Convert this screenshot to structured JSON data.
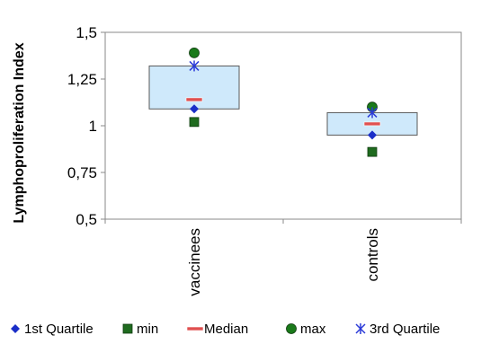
{
  "chart_data": {
    "type": "box",
    "ylabel": "Lymphoproliferation Index",
    "ylim": [
      0.5,
      1.5
    ],
    "yticks": [
      0.5,
      0.75,
      1,
      1.25,
      1.5
    ],
    "ytick_labels": [
      "0,5",
      "0,75",
      "1",
      "1,25",
      "1,5"
    ],
    "categories": [
      "vaccinees",
      "controls"
    ],
    "grid": false,
    "legend_position": "bottom",
    "series": [
      {
        "name": "1st Quartile",
        "values": [
          1.09,
          0.95
        ]
      },
      {
        "name": "min",
        "values": [
          1.02,
          0.86
        ]
      },
      {
        "name": "Median",
        "values": [
          1.14,
          1.01
        ]
      },
      {
        "name": "max",
        "values": [
          1.39,
          1.1
        ]
      },
      {
        "name": "3rd Quartile",
        "values": [
          1.32,
          1.07
        ]
      }
    ],
    "box": {
      "lower": [
        1.09,
        0.95
      ],
      "upper": [
        1.32,
        1.07
      ]
    },
    "colors": {
      "box_fill": "#cfe9fb",
      "box_stroke": "#5a5a5a",
      "q1": "#1a2ec8",
      "min": "#1f6b1f",
      "median": "#e05050",
      "max": "#1a7a1a",
      "q3": "#2a3ad8"
    }
  }
}
